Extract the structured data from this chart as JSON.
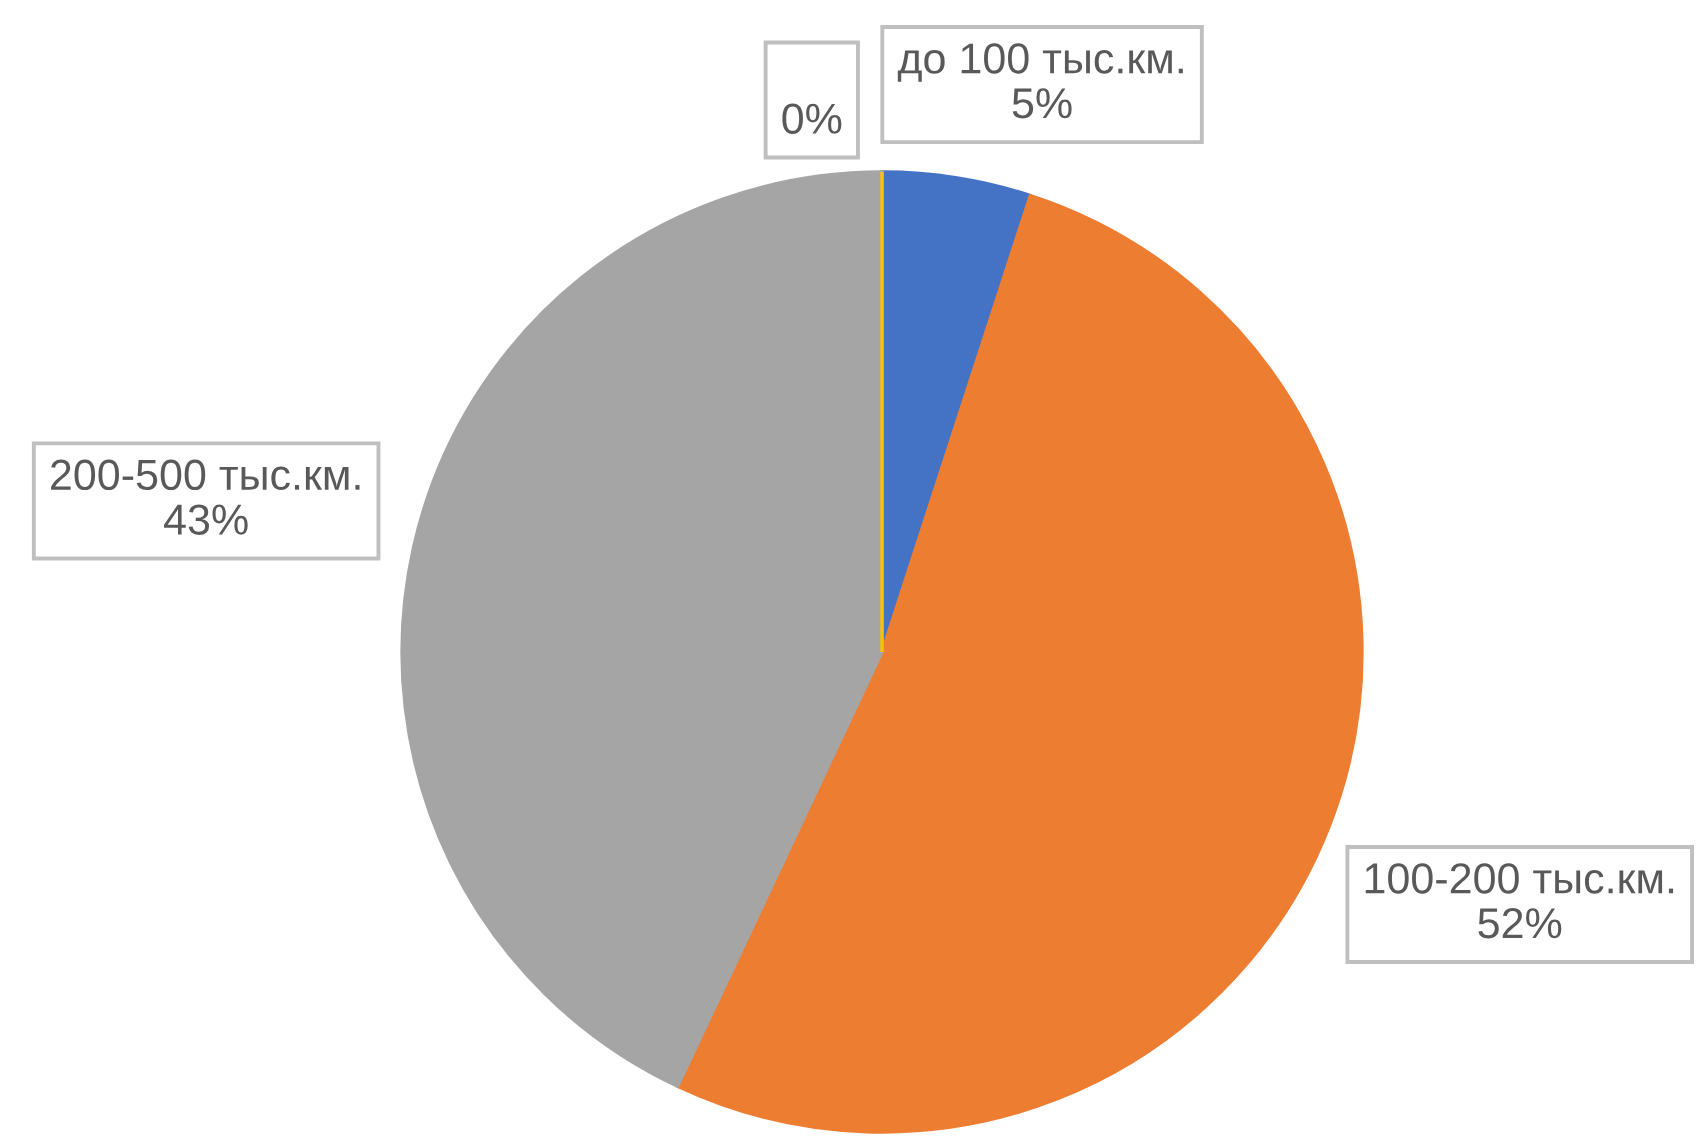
{
  "chart_data": {
    "type": "pie",
    "categories": [
      "до 100 тыс.км.",
      "100-200 тыс.км.",
      "200-500 тыс.км.",
      null
    ],
    "values": [
      5,
      52,
      43,
      0
    ],
    "value_labels": [
      "5%",
      "52%",
      "43%",
      "0%"
    ],
    "colors": [
      "#4472c4",
      "#ed7d31",
      "#a5a5a5",
      "#ffc000"
    ]
  }
}
